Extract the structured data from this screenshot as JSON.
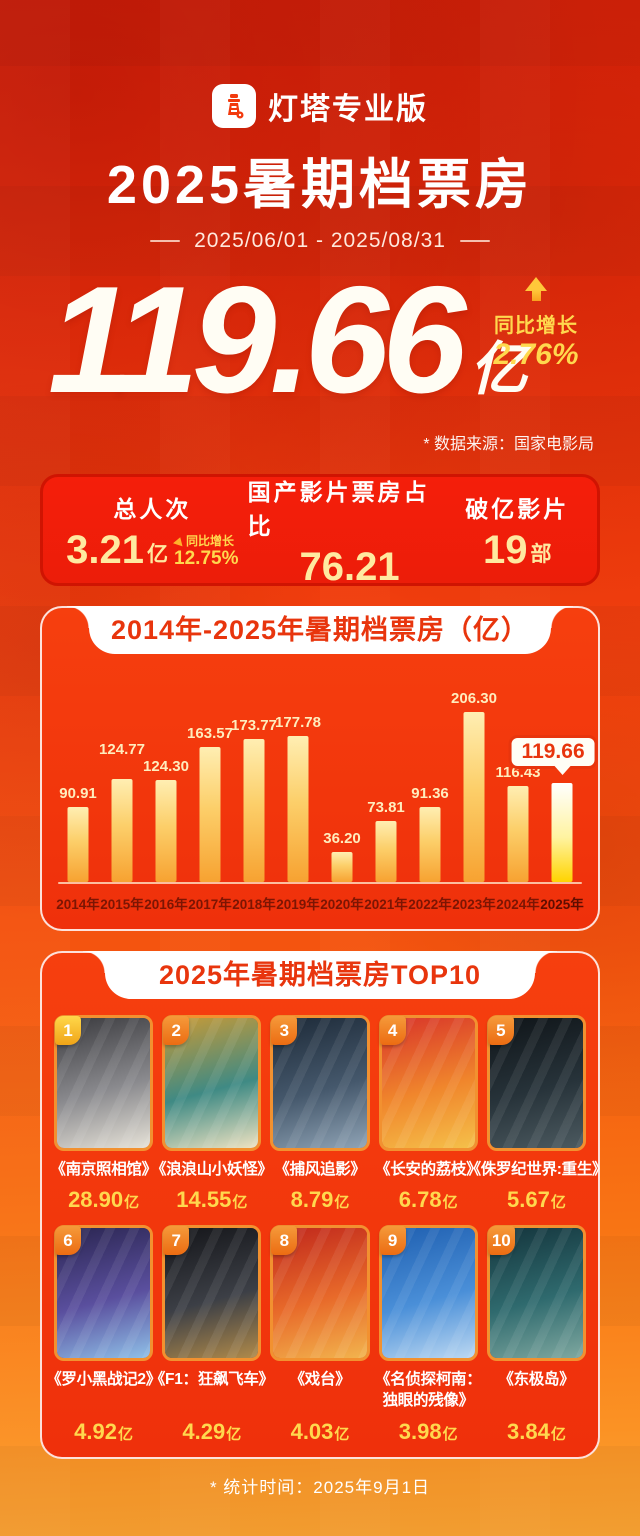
{
  "brand": {
    "name": "灯塔专业版"
  },
  "header": {
    "title": "2025暑期档票房",
    "date_range": "2025/06/01 - 2025/08/31"
  },
  "headline": {
    "value": "119.66",
    "unit": "亿",
    "yoy_label": "同比增长",
    "yoy_value": "2.76%",
    "source_note": "* 数据来源：国家电影局"
  },
  "stats": [
    {
      "label": "总人次",
      "value": "3.21",
      "suffix": "亿",
      "sub_label": "同比增长",
      "sub_value": "12.75%"
    },
    {
      "label": "国产影片票房占比",
      "value": "76.21"
    },
    {
      "label": "破亿影片",
      "value": "19",
      "suffix": "部"
    }
  ],
  "chart_data": {
    "type": "bar",
    "title": "2014年-2025年暑期档票房（亿）",
    "categories": [
      "2014年",
      "2015年",
      "2016年",
      "2017年",
      "2018年",
      "2019年",
      "2020年",
      "2021年",
      "2022年",
      "2023年",
      "2024年",
      "2025年"
    ],
    "values": [
      90.91,
      124.77,
      124.3,
      163.57,
      173.77,
      177.78,
      36.2,
      73.81,
      91.36,
      206.3,
      116.43,
      119.66
    ],
    "ylim": [
      0,
      206.3
    ],
    "highlight_index": 11,
    "callout_value": "119.66",
    "label_extra_raise": [
      0,
      16,
      0,
      0,
      0,
      0,
      0,
      0,
      0,
      0,
      0,
      0
    ],
    "grid": false,
    "legend": "none"
  },
  "top10": {
    "title": "2025年暑期档票房TOP10",
    "unit": "亿",
    "movies": [
      {
        "rank": "1",
        "title": "《南京照相馆》",
        "value": "28.90",
        "palette": [
          "#3a3a3e",
          "#8a8a8e",
          "#e6e2d8"
        ]
      },
      {
        "rank": "2",
        "title": "《浪浪山小妖怪》",
        "value": "14.55",
        "palette": [
          "#c89a36",
          "#3f8a84",
          "#efe3c2"
        ]
      },
      {
        "rank": "3",
        "title": "《捕风追影》",
        "value": "8.79",
        "palette": [
          "#1d2a38",
          "#45586c",
          "#8fa3b5"
        ]
      },
      {
        "rank": "4",
        "title": "《长安的荔枝》",
        "value": "6.78",
        "palette": [
          "#d8342a",
          "#f0862c",
          "#f5c04a"
        ]
      },
      {
        "rank": "5",
        "title": "《侏罗纪世界:重生》",
        "value": "5.67",
        "palette": [
          "#0f1418",
          "#27333a",
          "#4c5a60"
        ]
      },
      {
        "rank": "6",
        "title": "《罗小黑战记2》",
        "value": "4.92",
        "palette": [
          "#2a2550",
          "#5a4f9e",
          "#8fc0e8"
        ]
      },
      {
        "rank": "7",
        "title": "《F1：狂飙飞车》",
        "value": "4.29",
        "palette": [
          "#141519",
          "#3c3f46",
          "#b08a4a"
        ]
      },
      {
        "rank": "8",
        "title": "《戏台》",
        "value": "4.03",
        "palette": [
          "#c0271c",
          "#e86a2a",
          "#f2b44e"
        ]
      },
      {
        "rank": "9",
        "title": "《名侦探柯南：\n独眼的残像》",
        "value": "3.98",
        "palette": [
          "#1f5fb0",
          "#4a8fd8",
          "#bcd8f2"
        ]
      },
      {
        "rank": "10",
        "title": "《东极岛》",
        "value": "3.84",
        "palette": [
          "#14343c",
          "#2f6a6e",
          "#7fa8a0"
        ]
      }
    ]
  },
  "footer": {
    "note": "* 统计时间：2025年9月1日"
  },
  "colors": {
    "accent_red": "#e8350d",
    "gold": "#ffd84e",
    "pale_gold": "#ffe9a0",
    "bar_top": "#ffeeb2",
    "bar_bottom": "#f7a231",
    "highlight_bar_bottom": "#ffd400",
    "year_label": "#7c1503"
  }
}
